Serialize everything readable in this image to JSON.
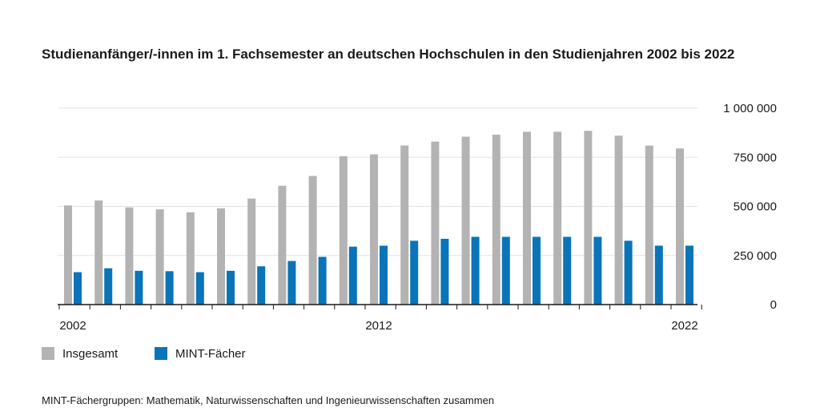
{
  "colors": {
    "insgesamt": "#b3b3b3",
    "mint": "#0a74b8",
    "grid": "#e3e3e3",
    "axis": "#1a1a1a"
  },
  "chart_data": {
    "type": "bar",
    "title": "Studienanfänger/-innen im 1. Fachsemester an deutschen Hochschulen in den Studienjahren 2002 bis 2022",
    "categories": [
      "2002",
      "2003",
      "2004",
      "2005",
      "2006",
      "2007",
      "2008",
      "2009",
      "2010",
      "2011",
      "2012",
      "2013",
      "2014",
      "2015",
      "2016",
      "2017",
      "2018",
      "2019",
      "2020",
      "2021",
      "2022"
    ],
    "x_tick_labels": [
      "2002",
      "2012",
      "2022"
    ],
    "y_tick_labels": [
      "1 000 000",
      "750 000",
      "500 000",
      "250 000",
      "0"
    ],
    "ylim": [
      0,
      1000000
    ],
    "y_ticks": [
      0,
      250000,
      500000,
      750000,
      1000000
    ],
    "grid": true,
    "legend_placement": "bottom-left",
    "series": [
      {
        "name": "Insgesamt",
        "color_key": "insgesamt",
        "values": [
          505000,
          530000,
          495000,
          485000,
          470000,
          490000,
          540000,
          605000,
          655000,
          755000,
          765000,
          810000,
          830000,
          855000,
          865000,
          880000,
          880000,
          885000,
          860000,
          810000,
          795000
        ]
      },
      {
        "name": "MINT-Fächer",
        "color_key": "mint",
        "values": [
          165000,
          185000,
          172000,
          170000,
          165000,
          172000,
          195000,
          222000,
          243000,
          295000,
          300000,
          325000,
          335000,
          345000,
          345000,
          345000,
          345000,
          345000,
          325000,
          300000,
          300000
        ]
      }
    ]
  },
  "footnote": "MINT-Fächergruppen: Mathematik, Naturwissenschaften und Ingenieurwissenschaften zusammen"
}
